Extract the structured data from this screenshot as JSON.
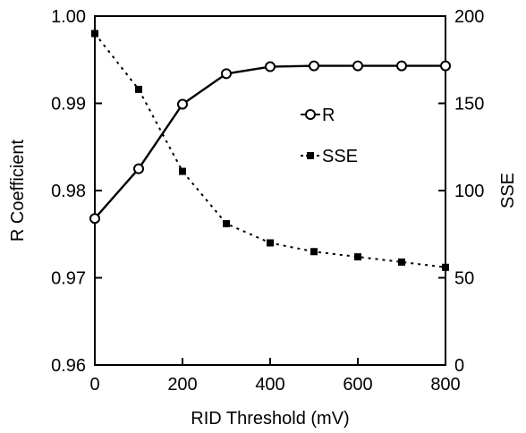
{
  "chart_data": {
    "type": "line",
    "title": "",
    "xlabel": "RID Threshold (mV)",
    "ylabel_left": "R Coefficient",
    "ylabel_right": "SSE",
    "xlim": [
      0,
      800
    ],
    "ylim_left": [
      0.96,
      1.0
    ],
    "ylim_right": [
      0,
      200
    ],
    "grid": false,
    "legend_position": "center-right",
    "x_ticks": [
      0,
      200,
      400,
      600,
      800
    ],
    "x_tick_labels": [
      "0",
      "200",
      "400",
      "600",
      "800"
    ],
    "y_left_ticks": [
      0.96,
      0.97,
      0.98,
      0.99,
      1.0
    ],
    "y_left_tick_labels": [
      "0.96",
      "0.97",
      "0.98",
      "0.99",
      "1.00"
    ],
    "y_right_ticks": [
      0,
      50,
      100,
      150,
      200
    ],
    "y_right_tick_labels": [
      "0",
      "50",
      "100",
      "150",
      "200"
    ],
    "series": [
      {
        "name": "R",
        "axis": "left",
        "line_style": "solid",
        "marker": "open-circle",
        "color": "#000000",
        "x": [
          0,
          100,
          200,
          300,
          400,
          500,
          600,
          700,
          800
        ],
        "y": [
          0.9768,
          0.9825,
          0.9899,
          0.9934,
          0.9942,
          0.9943,
          0.9943,
          0.9943,
          0.9943
        ]
      },
      {
        "name": "SSE",
        "axis": "right",
        "line_style": "dotted",
        "marker": "filled-square",
        "color": "#000000",
        "x": [
          0,
          100,
          200,
          300,
          400,
          500,
          600,
          700,
          800
        ],
        "y": [
          190,
          158,
          111,
          81,
          70,
          65,
          62,
          59,
          56
        ]
      }
    ]
  }
}
